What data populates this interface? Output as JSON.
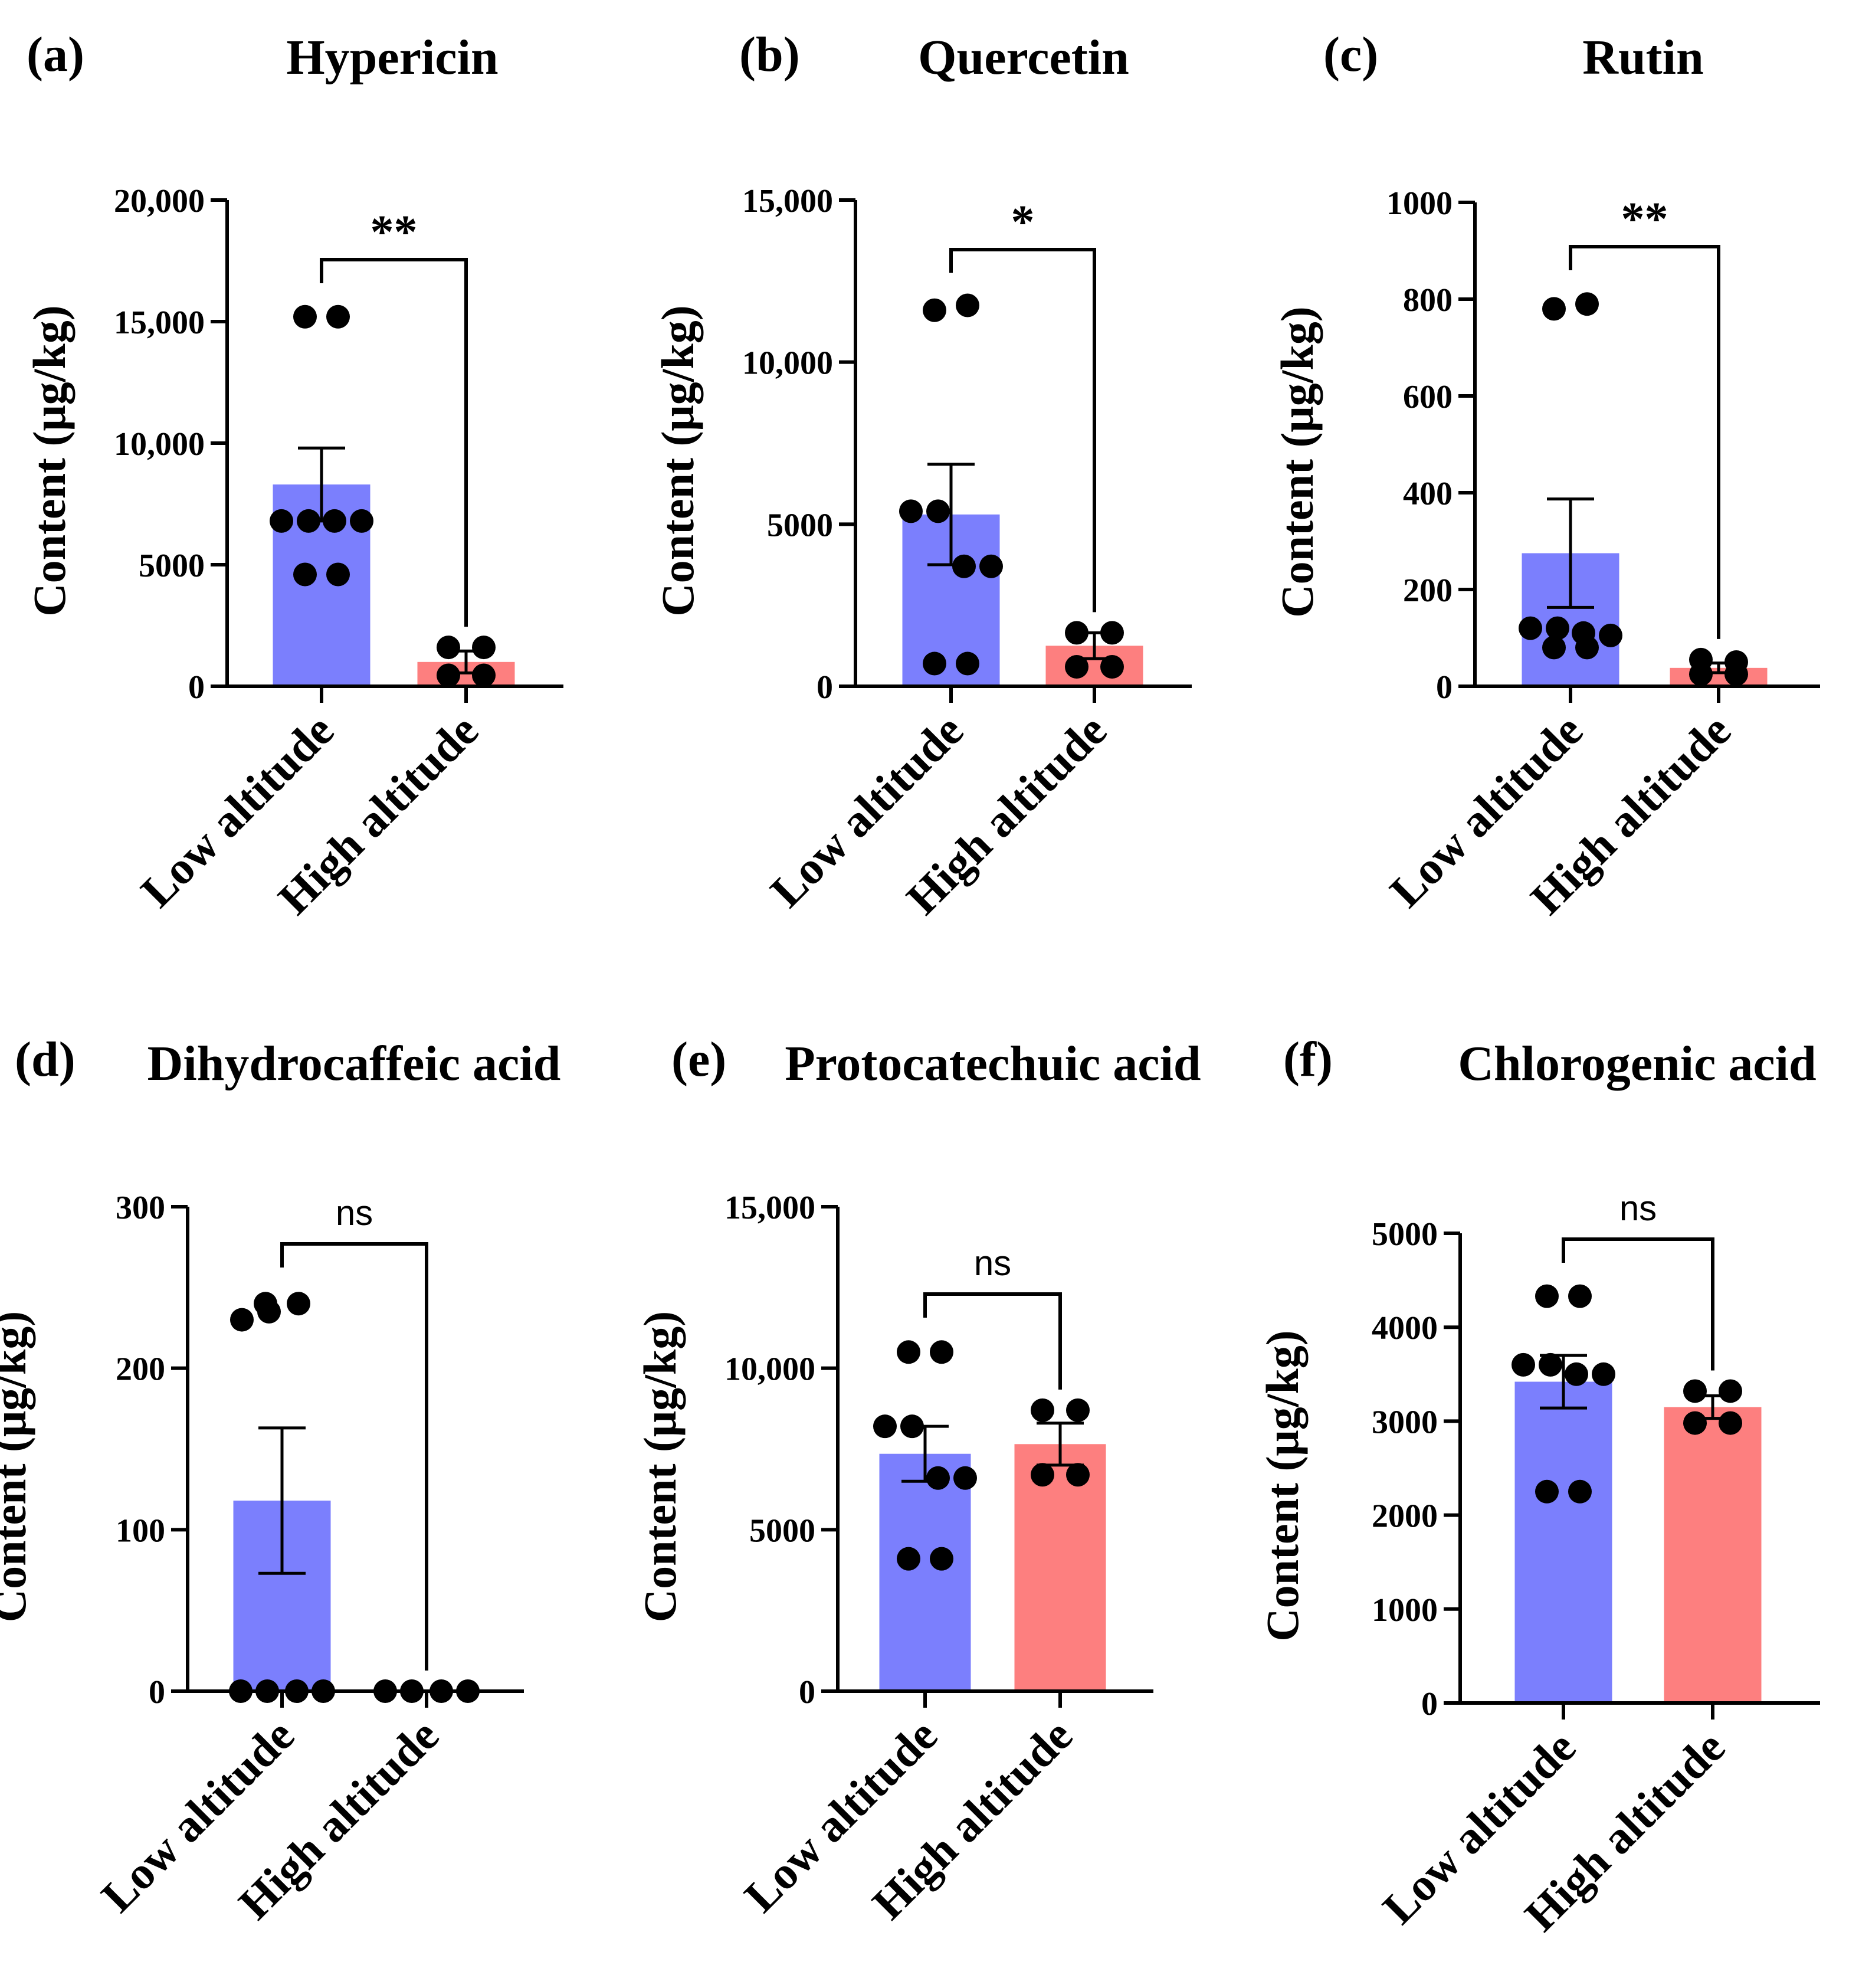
{
  "figure": {
    "colors": {
      "low": "#7b7ffd",
      "high": "#fd7f7f",
      "ink": "#000000"
    },
    "categories": [
      "Low altitude",
      "High altitude"
    ],
    "ylabel": "Content (μg/kg)"
  },
  "chart_data": [
    {
      "type": "bar",
      "label": "(a)",
      "title": "Hypericin",
      "categories": [
        "Low altitude",
        "High altitude"
      ],
      "values": [
        8300,
        1000
      ],
      "sem": [
        1500,
        450
      ],
      "points": [
        [
          15200,
          15200,
          6800,
          6800,
          6800,
          6800,
          4600,
          4600
        ],
        [
          1600,
          1600,
          450,
          450
        ]
      ],
      "ylabel": "Content (μg/kg)",
      "ylim": [
        0,
        20000
      ],
      "ticks": [
        0,
        5000,
        10000,
        15000,
        20000
      ],
      "tick_labels": [
        "0",
        "5000",
        "10,000",
        "15,000",
        "20,000"
      ],
      "significance": "**"
    },
    {
      "type": "bar",
      "label": "(b)",
      "title": "Quercetin",
      "categories": [
        "Low altitude",
        "High altitude"
      ],
      "values": [
        5300,
        1250
      ],
      "sem": [
        1550,
        400
      ],
      "points": [
        [
          11600,
          11750,
          5400,
          5400,
          3700,
          3700,
          700,
          700
        ],
        [
          1650,
          1650,
          600,
          600
        ]
      ],
      "ylabel": "Content (μg/kg)",
      "ylim": [
        0,
        15000
      ],
      "ticks": [
        0,
        5000,
        10000,
        15000
      ],
      "tick_labels": [
        "0",
        "5000",
        "10,000",
        "15,000"
      ],
      "significance": "*"
    },
    {
      "type": "bar",
      "label": "(c)",
      "title": "Rutin",
      "categories": [
        "Low altitude",
        "High altitude"
      ],
      "values": [
        275,
        38
      ],
      "sem": [
        112,
        10
      ],
      "points": [
        [
          780,
          790,
          120,
          120,
          110,
          105,
          80,
          80
        ],
        [
          55,
          50,
          25,
          25
        ]
      ],
      "ylabel": "Content (μg/kg)",
      "ylim": [
        0,
        1000
      ],
      "ticks": [
        0,
        200,
        400,
        600,
        800,
        1000
      ],
      "tick_labels": [
        "0",
        "200",
        "400",
        "600",
        "800",
        "1000"
      ],
      "significance": "**"
    },
    {
      "type": "bar",
      "label": "(d)",
      "title": "Dihydrocaffeic acid",
      "categories": [
        "Low altitude",
        "High altitude"
      ],
      "values": [
        118,
        0
      ],
      "sem": [
        45,
        0
      ],
      "points": [
        [
          240,
          240,
          230,
          235,
          0,
          0,
          0,
          0
        ],
        [
          0,
          0,
          0,
          0
        ]
      ],
      "ylabel": "Content (μg/kg)",
      "ylim": [
        0,
        300
      ],
      "ticks": [
        0,
        100,
        200,
        300
      ],
      "tick_labels": [
        "0",
        "100",
        "200",
        "300"
      ],
      "significance": "ns"
    },
    {
      "type": "bar",
      "label": "(e)",
      "title": "Protocatechuic acid",
      "categories": [
        "Low altitude",
        "High altitude"
      ],
      "values": [
        7350,
        7650
      ],
      "sem": [
        850,
        650
      ],
      "points": [
        [
          10500,
          10500,
          8200,
          8200,
          6600,
          6600,
          4100,
          4100
        ],
        [
          8700,
          8700,
          6700,
          6700
        ]
      ],
      "ylabel": "Content (μg/kg)",
      "ylim": [
        0,
        15000
      ],
      "ticks": [
        0,
        5000,
        10000,
        15000
      ],
      "tick_labels": [
        "0",
        "5000",
        "10,000",
        "15,000"
      ],
      "significance": "ns"
    },
    {
      "type": "bar",
      "label": "(f)",
      "title": "Chlorogenic acid",
      "categories": [
        "Low altitude",
        "High altitude"
      ],
      "values": [
        3420,
        3150
      ],
      "sem": [
        280,
        120
      ],
      "points": [
        [
          4330,
          4330,
          3600,
          3600,
          3500,
          3500,
          2250,
          2250
        ],
        [
          3320,
          3320,
          2980,
          2980
        ]
      ],
      "ylabel": "Content (μg/kg)",
      "ylim": [
        0,
        5000
      ],
      "ticks": [
        0,
        1000,
        2000,
        3000,
        4000,
        5000
      ],
      "tick_labels": [
        "0",
        "1000",
        "2000",
        "3000",
        "4000",
        "5000"
      ],
      "significance": "ns"
    }
  ]
}
